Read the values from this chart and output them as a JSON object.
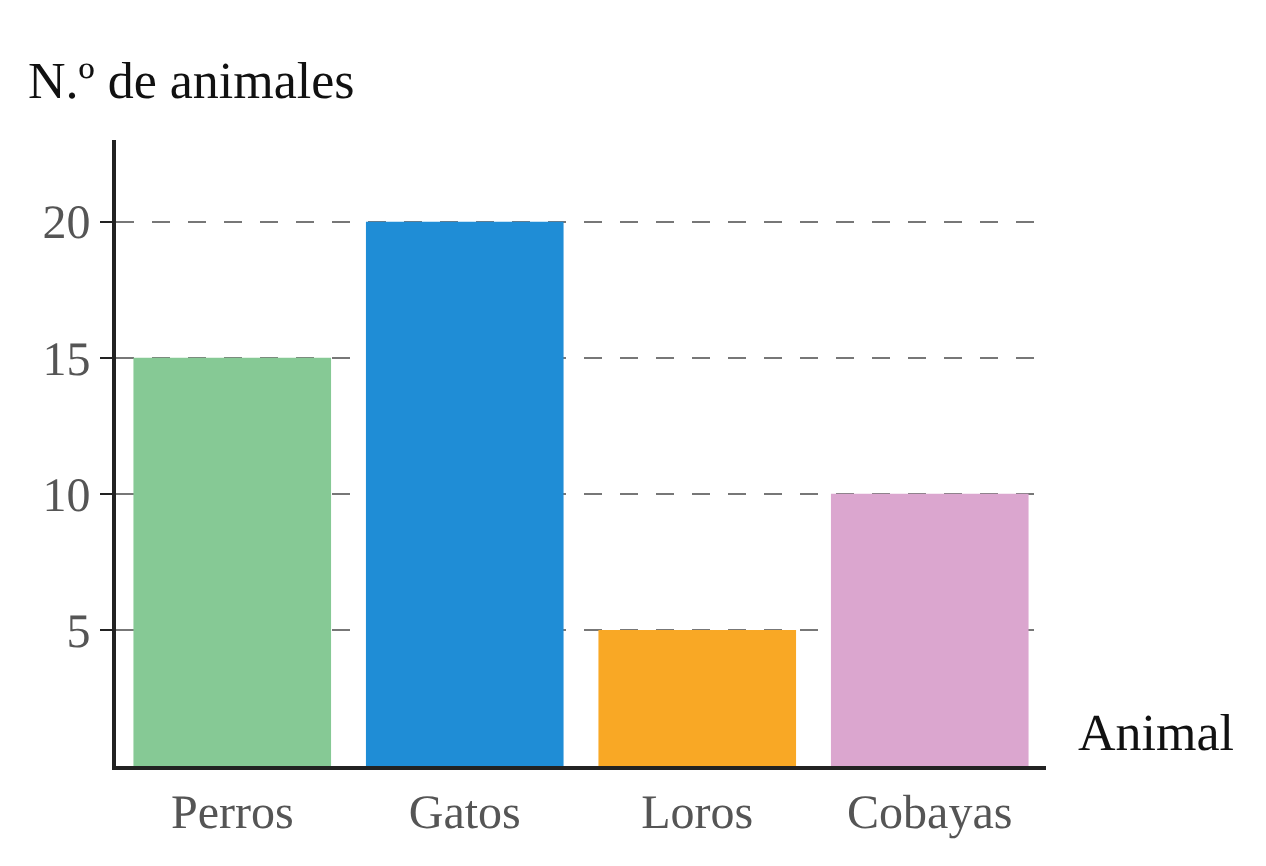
{
  "chart_data": {
    "type": "bar",
    "ylabel": "N.º de animales",
    "xlabel": "Animal",
    "categories": [
      "Perros",
      "Gatos",
      "Loros",
      "Cobayas"
    ],
    "values": [
      15,
      20,
      5,
      10
    ],
    "colors": [
      "#86c995",
      "#1f8dd6",
      "#f9a825",
      "#dba6cf"
    ],
    "ylim": [
      0,
      23
    ],
    "yticks": [
      5,
      10,
      15,
      20
    ],
    "grid": "y"
  }
}
